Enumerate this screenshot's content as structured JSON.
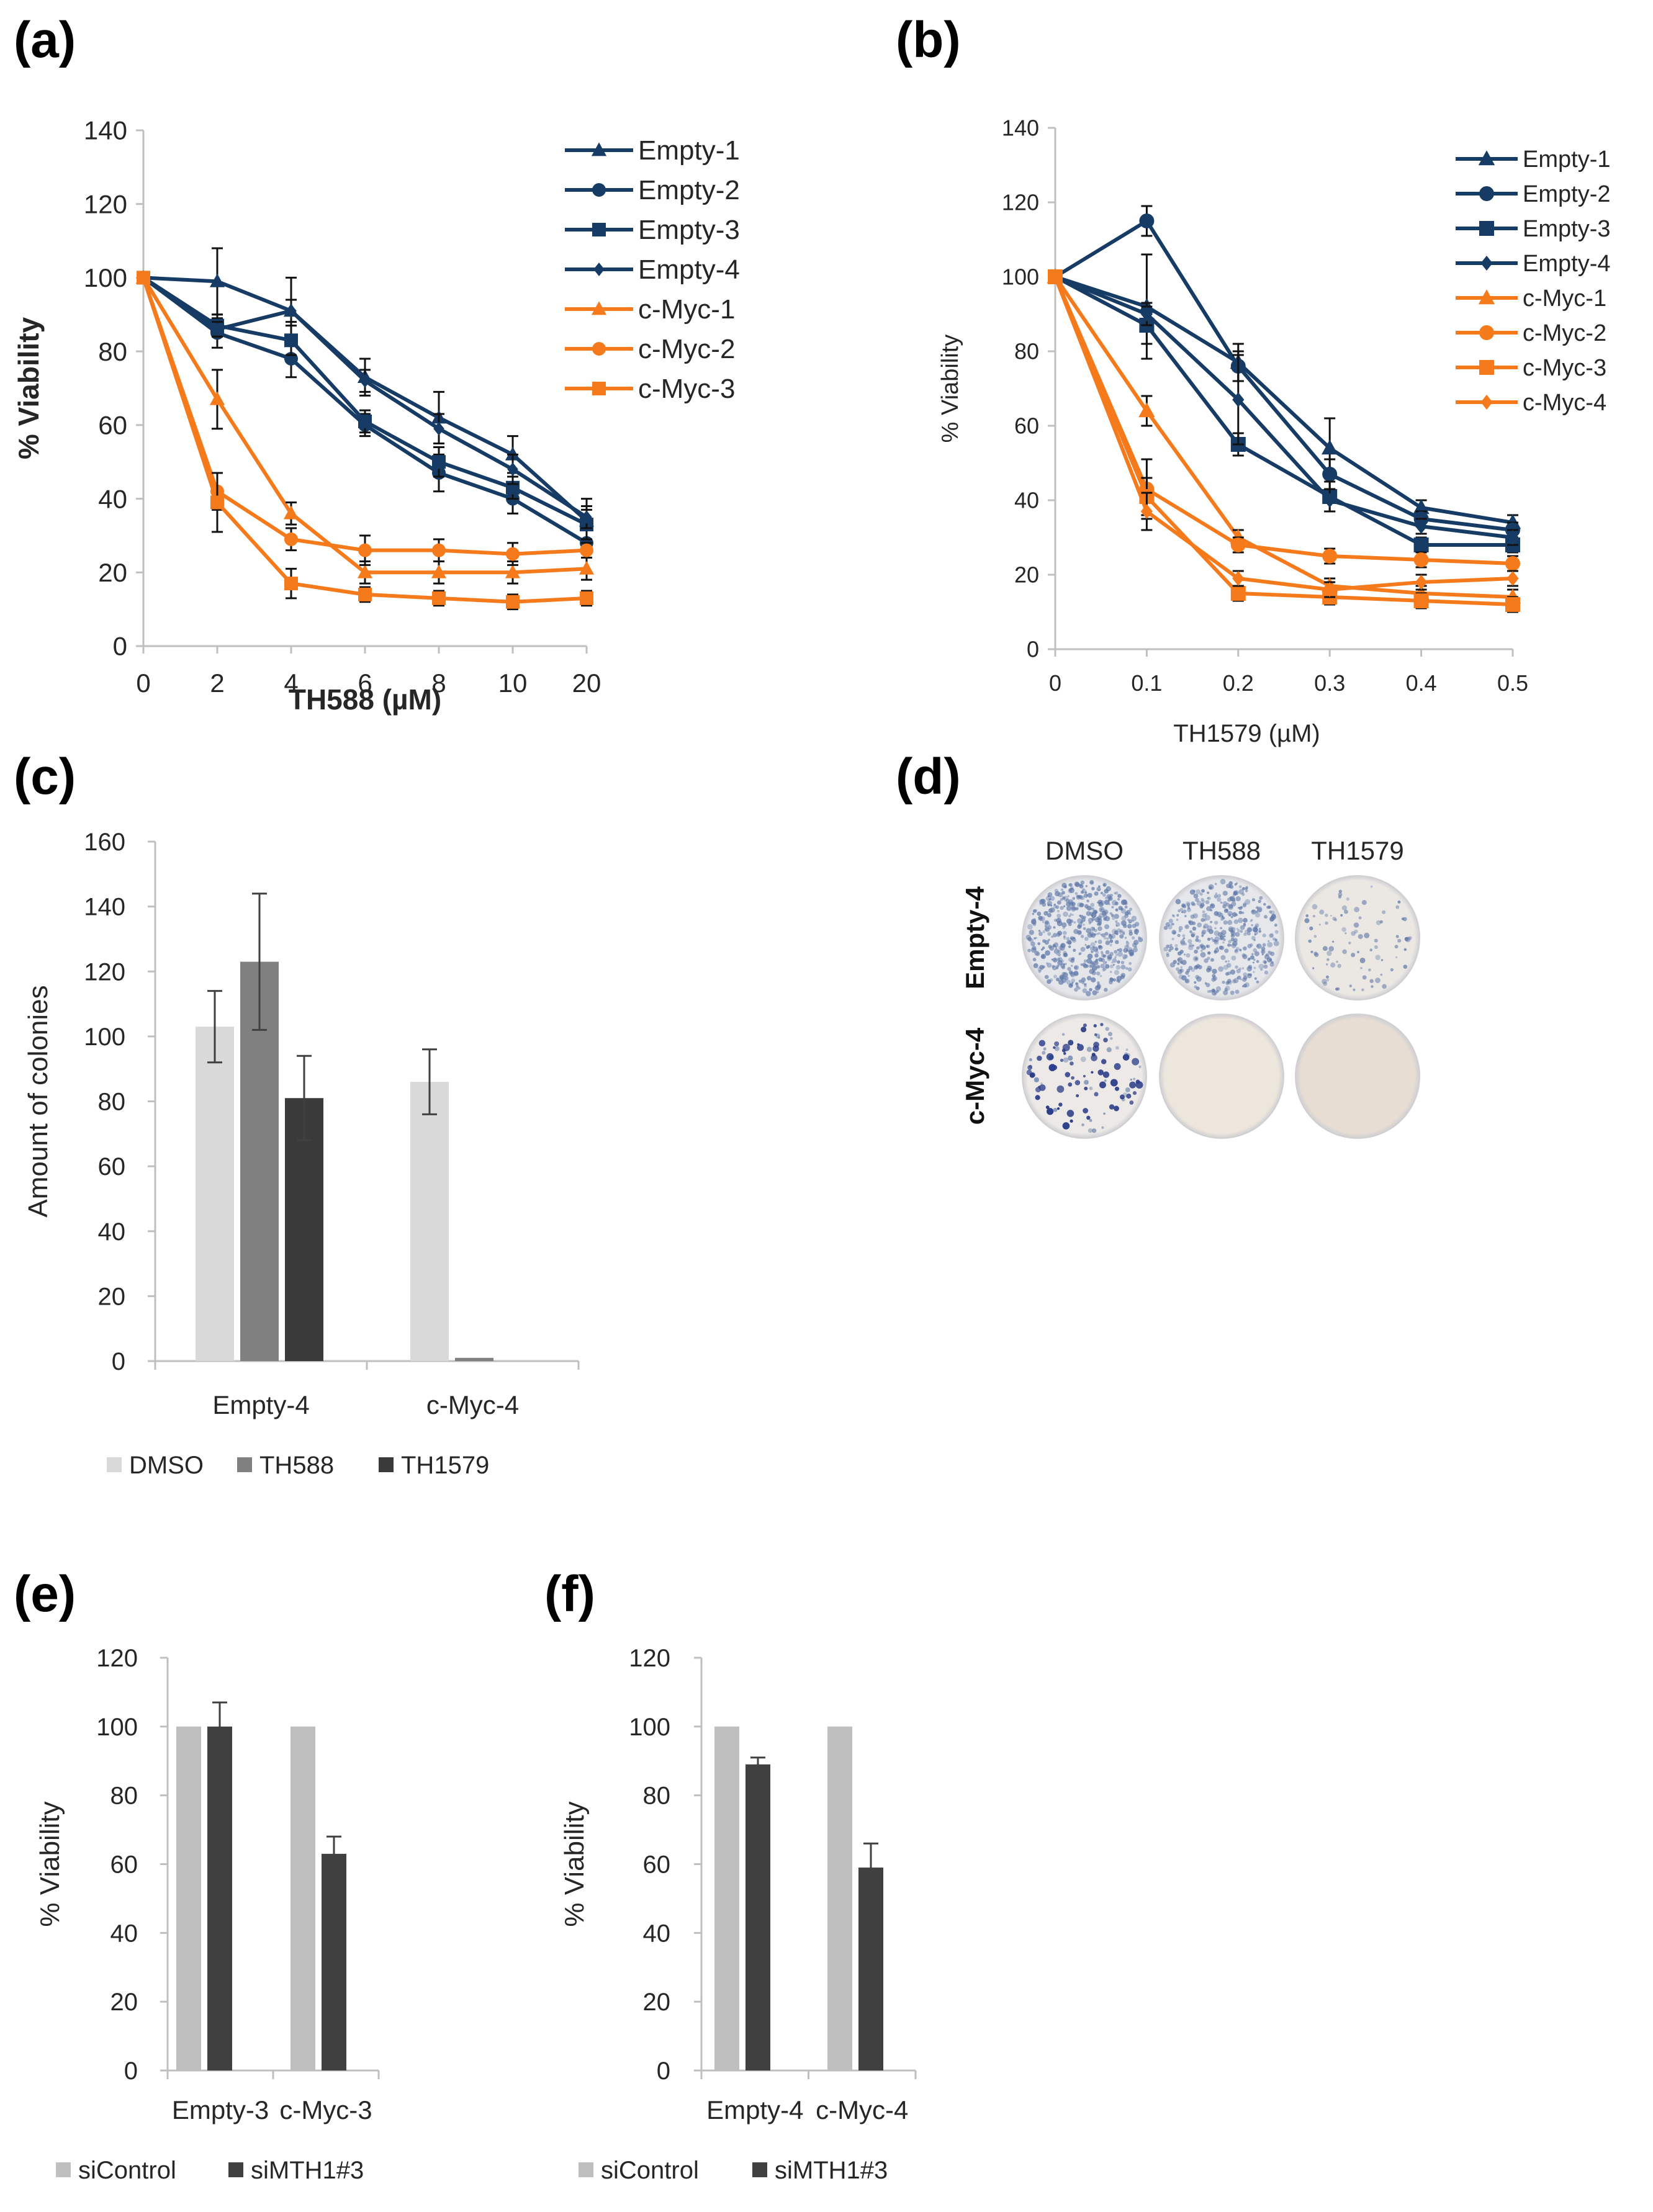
{
  "panels": {
    "a": "(a)",
    "b": "(b)",
    "c": "(c)",
    "d": "(d)",
    "e": "(e)",
    "f": "(f)"
  },
  "colors": {
    "navy": "#163B65",
    "orange": "#F57A1B",
    "dmso": "#D9D9D9",
    "th588": "#808080",
    "th1579": "#3A3A3A",
    "sicontrol": "#BFBFBF",
    "simth1": "#404040",
    "axis": "#BFBFBF",
    "text": "#262626"
  },
  "chart_data": [
    {
      "id": "a",
      "type": "line",
      "xlabel": "TH588 (µM)",
      "ylabel": "% Viability",
      "categories": [
        "0",
        "2",
        "4",
        "6",
        "8",
        "10",
        "20"
      ],
      "ylim": [
        0,
        140
      ],
      "yticks": [
        0,
        20,
        40,
        60,
        80,
        100,
        120,
        140
      ],
      "legend_position": "top-right",
      "series": [
        {
          "name": "Empty-1",
          "color": "navy",
          "marker": "triangle",
          "values": [
            100,
            99,
            91,
            73,
            62,
            52,
            34
          ],
          "err": [
            0,
            9,
            9,
            5,
            7,
            5,
            6
          ]
        },
        {
          "name": "Empty-2",
          "color": "navy",
          "marker": "circle",
          "values": [
            100,
            85,
            78,
            60,
            47,
            40,
            28
          ],
          "err": [
            0,
            4,
            5,
            3,
            5,
            4,
            4
          ]
        },
        {
          "name": "Empty-3",
          "color": "navy",
          "marker": "square",
          "values": [
            100,
            87,
            83,
            61,
            50,
            43,
            33
          ],
          "err": [
            0,
            3,
            4,
            3,
            4,
            3,
            4
          ]
        },
        {
          "name": "Empty-4",
          "color": "navy",
          "marker": "diamond",
          "values": [
            100,
            86,
            91,
            72,
            59,
            48,
            35
          ],
          "err": [
            0,
            2,
            3,
            3,
            4,
            4,
            3
          ]
        },
        {
          "name": "c-Myc-1",
          "color": "orange",
          "marker": "triangle",
          "values": [
            100,
            67,
            36,
            20,
            20,
            20,
            21
          ],
          "err": [
            0,
            8,
            3,
            3,
            3,
            3,
            3
          ]
        },
        {
          "name": "c-Myc-2",
          "color": "orange",
          "marker": "circle",
          "values": [
            100,
            42,
            29,
            26,
            26,
            25,
            26
          ],
          "err": [
            0,
            5,
            3,
            4,
            3,
            3,
            2
          ]
        },
        {
          "name": "c-Myc-3",
          "color": "orange",
          "marker": "square",
          "values": [
            100,
            39,
            17,
            14,
            13,
            12,
            13
          ],
          "err": [
            0,
            8,
            4,
            2,
            2,
            2,
            2
          ]
        }
      ]
    },
    {
      "id": "b",
      "type": "line",
      "xlabel": "TH1579 (µM)",
      "ylabel": "% Viability",
      "categories": [
        "0",
        "0.1",
        "0.2",
        "0.3",
        "0.4",
        "0.5"
      ],
      "ylim": [
        0,
        140
      ],
      "yticks": [
        0,
        20,
        40,
        60,
        80,
        100,
        120,
        140
      ],
      "legend_position": "top-right",
      "series": [
        {
          "name": "Empty-1",
          "color": "navy",
          "marker": "triangle",
          "values": [
            100,
            92,
            77,
            54,
            38,
            34
          ],
          "err": [
            0,
            14,
            5,
            8,
            2,
            2
          ]
        },
        {
          "name": "Empty-2",
          "color": "navy",
          "marker": "circle",
          "values": [
            100,
            115,
            76,
            47,
            35,
            32
          ],
          "err": [
            0,
            4,
            4,
            4,
            2,
            2
          ]
        },
        {
          "name": "Empty-3",
          "color": "navy",
          "marker": "square",
          "values": [
            100,
            87,
            55,
            41,
            28,
            28
          ],
          "err": [
            0,
            5,
            3,
            4,
            2,
            2
          ]
        },
        {
          "name": "Empty-4",
          "color": "navy",
          "marker": "diamond",
          "values": [
            100,
            90,
            67,
            40,
            33,
            30
          ],
          "err": [
            0,
            3,
            12,
            3,
            2,
            2
          ]
        },
        {
          "name": "c-Myc-1",
          "color": "orange",
          "marker": "triangle",
          "values": [
            100,
            64,
            30,
            17,
            15,
            14
          ],
          "err": [
            0,
            4,
            2,
            2,
            2,
            2
          ]
        },
        {
          "name": "c-Myc-2",
          "color": "orange",
          "marker": "circle",
          "values": [
            100,
            43,
            28,
            25,
            24,
            23
          ],
          "err": [
            0,
            8,
            2,
            2,
            2,
            2
          ]
        },
        {
          "name": "c-Myc-3",
          "color": "orange",
          "marker": "square",
          "values": [
            100,
            41,
            15,
            14,
            13,
            12
          ],
          "err": [
            0,
            5,
            2,
            2,
            2,
            2
          ]
        },
        {
          "name": "c-Myc-4",
          "color": "orange",
          "marker": "diamond",
          "values": [
            100,
            37,
            19,
            16,
            18,
            19
          ],
          "err": [
            0,
            5,
            2,
            2,
            2,
            2
          ]
        }
      ]
    },
    {
      "id": "c",
      "type": "bar",
      "ylabel": "Amount of colonies",
      "categories": [
        "Empty-4",
        "c-Myc-4"
      ],
      "ylim": [
        0,
        160
      ],
      "yticks": [
        0,
        20,
        40,
        60,
        80,
        100,
        120,
        140,
        160
      ],
      "legend_position": "bottom",
      "series": [
        {
          "name": "DMSO",
          "color": "dmso",
          "values": [
            103,
            86
          ],
          "err": [
            11,
            10
          ]
        },
        {
          "name": "TH588",
          "color": "th588",
          "values": [
            123,
            1
          ],
          "err": [
            21,
            0
          ]
        },
        {
          "name": "TH1579",
          "color": "th1579",
          "values": [
            81,
            0
          ],
          "err": [
            13,
            0
          ]
        }
      ]
    },
    {
      "id": "e",
      "type": "bar",
      "ylabel": "% Viability",
      "categories": [
        "Empty-3",
        "c-Myc-3"
      ],
      "ylim": [
        0,
        120
      ],
      "yticks": [
        0,
        20,
        40,
        60,
        80,
        100,
        120
      ],
      "legend_position": "bottom",
      "series": [
        {
          "name": "siControl",
          "color": "sicontrol",
          "values": [
            100,
            100
          ],
          "err": [
            0,
            0
          ]
        },
        {
          "name": "siMTH1#3",
          "color": "simth1",
          "values": [
            100,
            63
          ],
          "err": [
            7,
            5
          ]
        }
      ]
    },
    {
      "id": "f",
      "type": "bar",
      "ylabel": "% Viability",
      "categories": [
        "Empty-4",
        "c-Myc-4"
      ],
      "ylim": [
        0,
        120
      ],
      "yticks": [
        0,
        20,
        40,
        60,
        80,
        100,
        120
      ],
      "legend_position": "bottom",
      "series": [
        {
          "name": "siControl",
          "color": "sicontrol",
          "values": [
            100,
            100
          ],
          "err": [
            0,
            0
          ]
        },
        {
          "name": "siMTH1#3",
          "color": "simth1",
          "values": [
            89,
            59
          ],
          "err": [
            2,
            7
          ]
        }
      ]
    }
  ],
  "plates": {
    "columns": [
      "DMSO",
      "TH588",
      "TH1579"
    ],
    "rows": [
      "Empty-4",
      "c-Myc-4"
    ]
  }
}
